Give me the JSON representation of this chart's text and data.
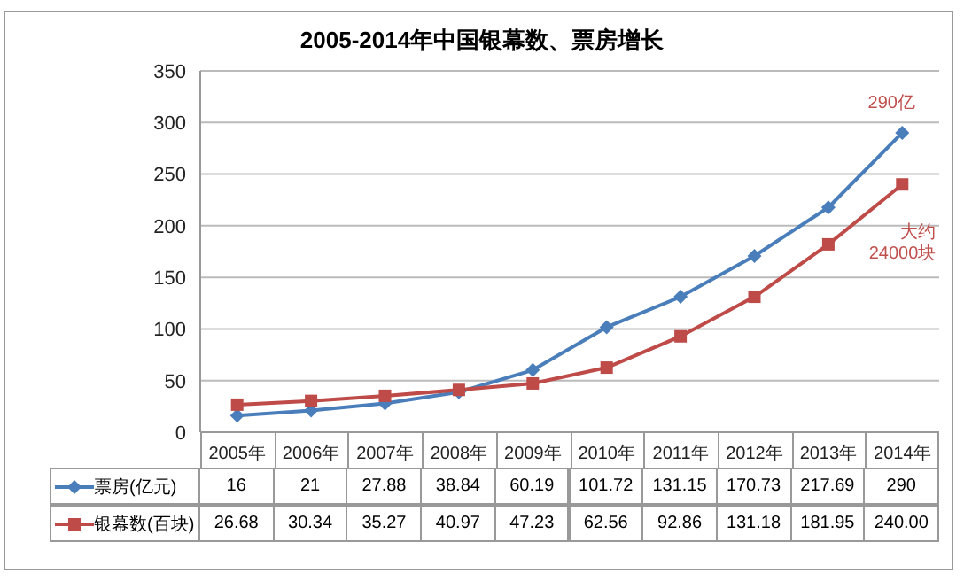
{
  "chart_data": {
    "type": "line",
    "title": "2005-2014年中国银幕数、票房增长",
    "categories": [
      "2005年",
      "2006年",
      "2007年",
      "2008年",
      "2009年",
      "2010年",
      "2011年",
      "2012年",
      "2013年",
      "2014年"
    ],
    "series": [
      {
        "name": "票房(亿元)",
        "color": "#4a7ebb",
        "marker": "diamond",
        "values": [
          16,
          21,
          27.88,
          38.84,
          60.19,
          101.72,
          131.15,
          170.73,
          217.69,
          290
        ],
        "value_labels": [
          "16",
          "21",
          "27.88",
          "38.84",
          "60.19",
          "101.72",
          "131.15",
          "170.73",
          "217.69",
          "290"
        ]
      },
      {
        "name": "银幕数(百块)",
        "color": "#be4b48",
        "marker": "square",
        "values": [
          26.68,
          30.34,
          35.27,
          40.97,
          47.23,
          62.56,
          92.86,
          131.18,
          181.95,
          240.0
        ],
        "value_labels": [
          "26.68",
          "30.34",
          "35.27",
          "40.97",
          "47.23",
          "62.56",
          "92.86",
          "131.18",
          "181.95",
          "240.00"
        ]
      }
    ],
    "ylim": [
      0,
      350
    ],
    "yticks": [
      0,
      50,
      100,
      150,
      200,
      250,
      300,
      350
    ],
    "grid": "y",
    "legend": "bottom",
    "annotations": [
      {
        "text": "290亿",
        "x": "2014年",
        "y": 290
      },
      {
        "text": "大约\n24000块",
        "x": "2014年",
        "y": 240
      }
    ]
  }
}
